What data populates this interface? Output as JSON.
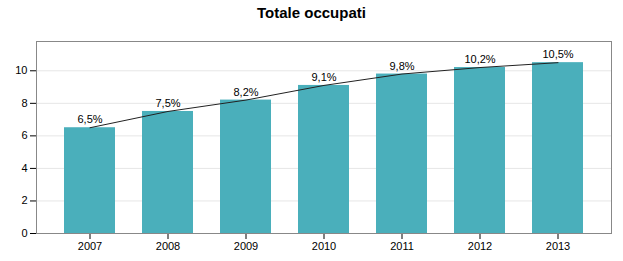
{
  "chart_data": {
    "type": "bar",
    "title": "Totale occupati",
    "categories": [
      "2007",
      "2008",
      "2009",
      "2010",
      "2011",
      "2012",
      "2013"
    ],
    "series": [
      {
        "type": "bar",
        "color": "#4AAFBB",
        "values": [
          6.5,
          7.5,
          8.2,
          9.1,
          9.8,
          10.2,
          10.5
        ],
        "value_labels": [
          "6,5%",
          "7,5%",
          "8,2%",
          "9,1%",
          "9,8%",
          "10,2%",
          "10,5%"
        ]
      },
      {
        "type": "line",
        "color": "#222222",
        "values": [
          6.5,
          7.5,
          8.2,
          9.1,
          9.8,
          10.2,
          10.5
        ]
      }
    ],
    "data_labels": true,
    "ylim": [
      0,
      11.8
    ],
    "yticks": [
      0,
      2,
      4,
      6,
      8,
      10
    ],
    "grid": true
  }
}
